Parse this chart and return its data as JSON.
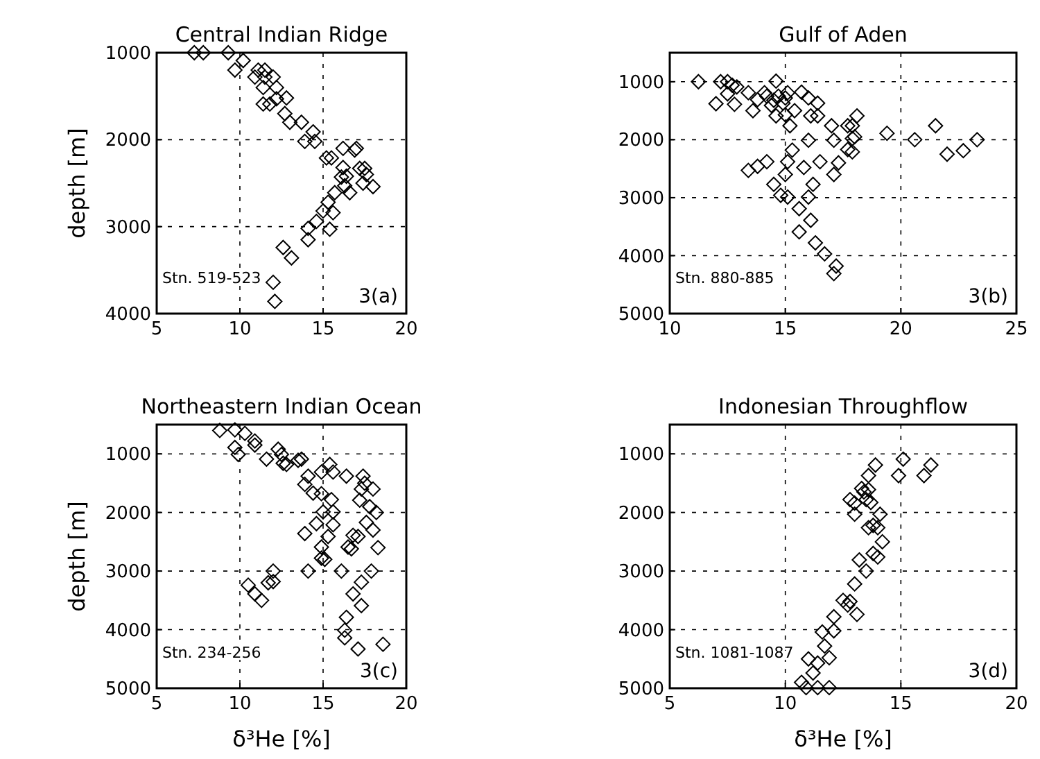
{
  "chart_data": [
    {
      "type": "scatter",
      "title": "Central Indian Ridge",
      "ylabel": "depth [m]",
      "xlim": [
        5,
        20
      ],
      "xticks": [
        5,
        10,
        15,
        20
      ],
      "ylim": [
        4000,
        1000
      ],
      "yticks": [
        1000,
        2000,
        3000,
        4000
      ],
      "grid": true,
      "marker": "diamond",
      "annotations": [
        "Stn. 519-523",
        "3(a)"
      ],
      "series": [
        {
          "color": "#000000",
          "x": [
            7.26,
            7.8,
            9.3,
            9.7,
            10.2,
            10.9,
            11.1,
            11.5,
            11.4,
            11.5,
            12.0,
            12.2,
            11.4,
            11.8,
            12.2,
            12.8,
            12.7,
            13.0,
            13.7,
            13.9,
            14.4,
            14.5,
            15.2,
            15.5,
            16.2,
            16.9,
            17.0,
            16.2,
            16.1,
            16.4,
            16.3,
            16.6,
            17.2,
            17.5,
            17.4,
            15.7,
            15.3,
            15.0,
            15.6,
            15.4,
            14.6,
            14.1,
            14.1,
            12.6,
            13.1,
            12.0,
            12.1,
            18.0,
            17.6
          ],
          "values": [
            1000,
            1000,
            1000,
            1200,
            1090,
            1280,
            1200,
            1200,
            1400,
            1280,
            1280,
            1400,
            1590,
            1590,
            1530,
            1520,
            1700,
            1800,
            1800,
            2020,
            1910,
            2020,
            2210,
            2210,
            2100,
            2120,
            2100,
            2320,
            2430,
            2420,
            2530,
            2610,
            2330,
            2330,
            2500,
            2610,
            2720,
            2820,
            2840,
            3030,
            2940,
            3020,
            3150,
            3240,
            3360,
            3640,
            3860,
            2540,
            2400
          ]
        }
      ]
    },
    {
      "type": "scatter",
      "title": "Gulf of Aden",
      "xlim": [
        10,
        25
      ],
      "xticks": [
        10,
        15,
        20,
        25
      ],
      "ylim": [
        5000,
        500
      ],
      "yticks": [
        1000,
        2000,
        3000,
        4000,
        5000
      ],
      "grid": true,
      "marker": "diamond",
      "annotations": [
        "Stn. 880-885",
        "3(b)"
      ],
      "series": [
        {
          "color": "#000000",
          "x": [
            11.24,
            12.2,
            12.0,
            12.5,
            12.5,
            12.7,
            12.9,
            12.8,
            13.4,
            13.6,
            13.8,
            14.1,
            14.2,
            14.6,
            14.5,
            14.4,
            14.7,
            14.9,
            15.0,
            15.1,
            14.6,
            15.0,
            15.4,
            15.2,
            15.7,
            16.0,
            16.4,
            16.4,
            16.1,
            16.0,
            17.0,
            17.1,
            17.7,
            18.1,
            17.9,
            17.9,
            18.0,
            17.7,
            17.9,
            19.4,
            20.6,
            21.5,
            22.0,
            22.7,
            23.3,
            15.3,
            15.1,
            15.0,
            14.2,
            13.8,
            13.4,
            15.8,
            16.5,
            17.3,
            17.1,
            16.2,
            14.5,
            14.8,
            15.1,
            16.0,
            15.6,
            16.1,
            15.6,
            16.3,
            16.7,
            17.2,
            17.1
          ],
          "values": [
            1000,
            1000,
            1380,
            1000,
            1210,
            1060,
            1090,
            1390,
            1190,
            1500,
            1310,
            1190,
            1250,
            990,
            1320,
            1410,
            1250,
            1370,
            1280,
            1190,
            1590,
            1570,
            1500,
            1760,
            1180,
            1280,
            1370,
            1590,
            1590,
            2010,
            1760,
            2010,
            1760,
            1590,
            1760,
            1980,
            1950,
            2170,
            2210,
            1890,
            2000,
            1760,
            2250,
            2190,
            2000,
            2180,
            2380,
            2600,
            2380,
            2460,
            2530,
            2480,
            2380,
            2400,
            2600,
            2770,
            2770,
            2960,
            2990,
            2990,
            3190,
            3390,
            3590,
            3780,
            3970,
            4180,
            4310
          ]
        }
      ]
    },
    {
      "type": "scatter",
      "title": "Northeastern Indian Ocean",
      "xlabel": "δ³He [%]",
      "ylabel": "depth [m]",
      "xlim": [
        5,
        20
      ],
      "xticks": [
        5,
        10,
        15,
        20
      ],
      "ylim": [
        5000,
        500
      ],
      "yticks": [
        1000,
        2000,
        3000,
        4000,
        5000
      ],
      "grid": true,
      "marker": "diamond",
      "annotations": [
        "Stn. 234-256",
        "3(c)"
      ],
      "series": [
        {
          "color": "#000000",
          "x": [
            8.79,
            9.7,
            10.3,
            9.7,
            9.9,
            10.9,
            10.9,
            11.6,
            12.3,
            12.5,
            12.6,
            12.8,
            13.5,
            13.7,
            14.1,
            13.9,
            14.4,
            14.9,
            14.9,
            15.4,
            15.6,
            15.0,
            15.5,
            15.6,
            15.6,
            15.3,
            14.6,
            13.9,
            14.9,
            14.9,
            15.1,
            14.1,
            16.4,
            17.4,
            17.3,
            17.2,
            17.6,
            17.1,
            16.8,
            16.5,
            16.7,
            16.1,
            17.3,
            16.8,
            17.3,
            16.4,
            16.3,
            16.3,
            17.1,
            10.5,
            10.9,
            11.3,
            11.7,
            12.0,
            12.0,
            18.0,
            17.8,
            18.2,
            18.3,
            17.9,
            18.6,
            17.5,
            18.0
          ],
          "values": [
            600,
            590,
            650,
            890,
            1010,
            780,
            850,
            1090,
            920,
            1010,
            1160,
            1180,
            1110,
            1090,
            1380,
            1520,
            1670,
            1310,
            1680,
            1180,
            1310,
            1990,
            1780,
            1990,
            2210,
            2410,
            2190,
            2360,
            2590,
            2780,
            2800,
            3000,
            1380,
            1380,
            1600,
            1790,
            2170,
            2410,
            2390,
            2590,
            2620,
            3000,
            3190,
            3390,
            3590,
            3790,
            4010,
            4140,
            4330,
            3240,
            3390,
            3500,
            3200,
            3180,
            3000,
            1600,
            1900,
            2000,
            2600,
            3000,
            4250,
            1500,
            2300
          ]
        }
      ]
    },
    {
      "type": "scatter",
      "title": "Indonesian Throughflow",
      "xlabel": "δ³He [%]",
      "xlim": [
        5,
        20
      ],
      "xticks": [
        5,
        10,
        15,
        20
      ],
      "ylim": [
        5000,
        500
      ],
      "yticks": [
        1000,
        2000,
        3000,
        4000,
        5000
      ],
      "grid": true,
      "marker": "diamond",
      "annotations": [
        "Stn. 1081-1087",
        "3(d)"
      ],
      "series": [
        {
          "color": "#000000",
          "x": [
            15.1,
            14.9,
            16.0,
            16.3,
            13.9,
            13.6,
            13.3,
            13.4,
            13.6,
            12.8,
            13.0,
            13.5,
            13.7,
            13.0,
            14.1,
            13.8,
            13.6,
            14.0,
            14.2,
            13.8,
            13.2,
            14.0,
            13.5,
            13.0,
            12.5,
            12.7,
            12.8,
            13.1,
            12.1,
            11.6,
            12.1,
            11.7,
            11.0,
            11.4,
            11.9,
            11.2,
            10.7,
            11.4,
            11.9,
            10.9
          ],
          "values": [
            1090,
            1370,
            1370,
            1190,
            1190,
            1370,
            1590,
            1650,
            1610,
            1780,
            1840,
            1780,
            1830,
            2030,
            2030,
            2220,
            2260,
            2260,
            2500,
            2700,
            2810,
            2760,
            3000,
            3220,
            3500,
            3580,
            3520,
            3740,
            3780,
            4040,
            4020,
            4280,
            4500,
            4570,
            4480,
            4740,
            4900,
            4990,
            4990,
            4990
          ]
        }
      ]
    }
  ]
}
